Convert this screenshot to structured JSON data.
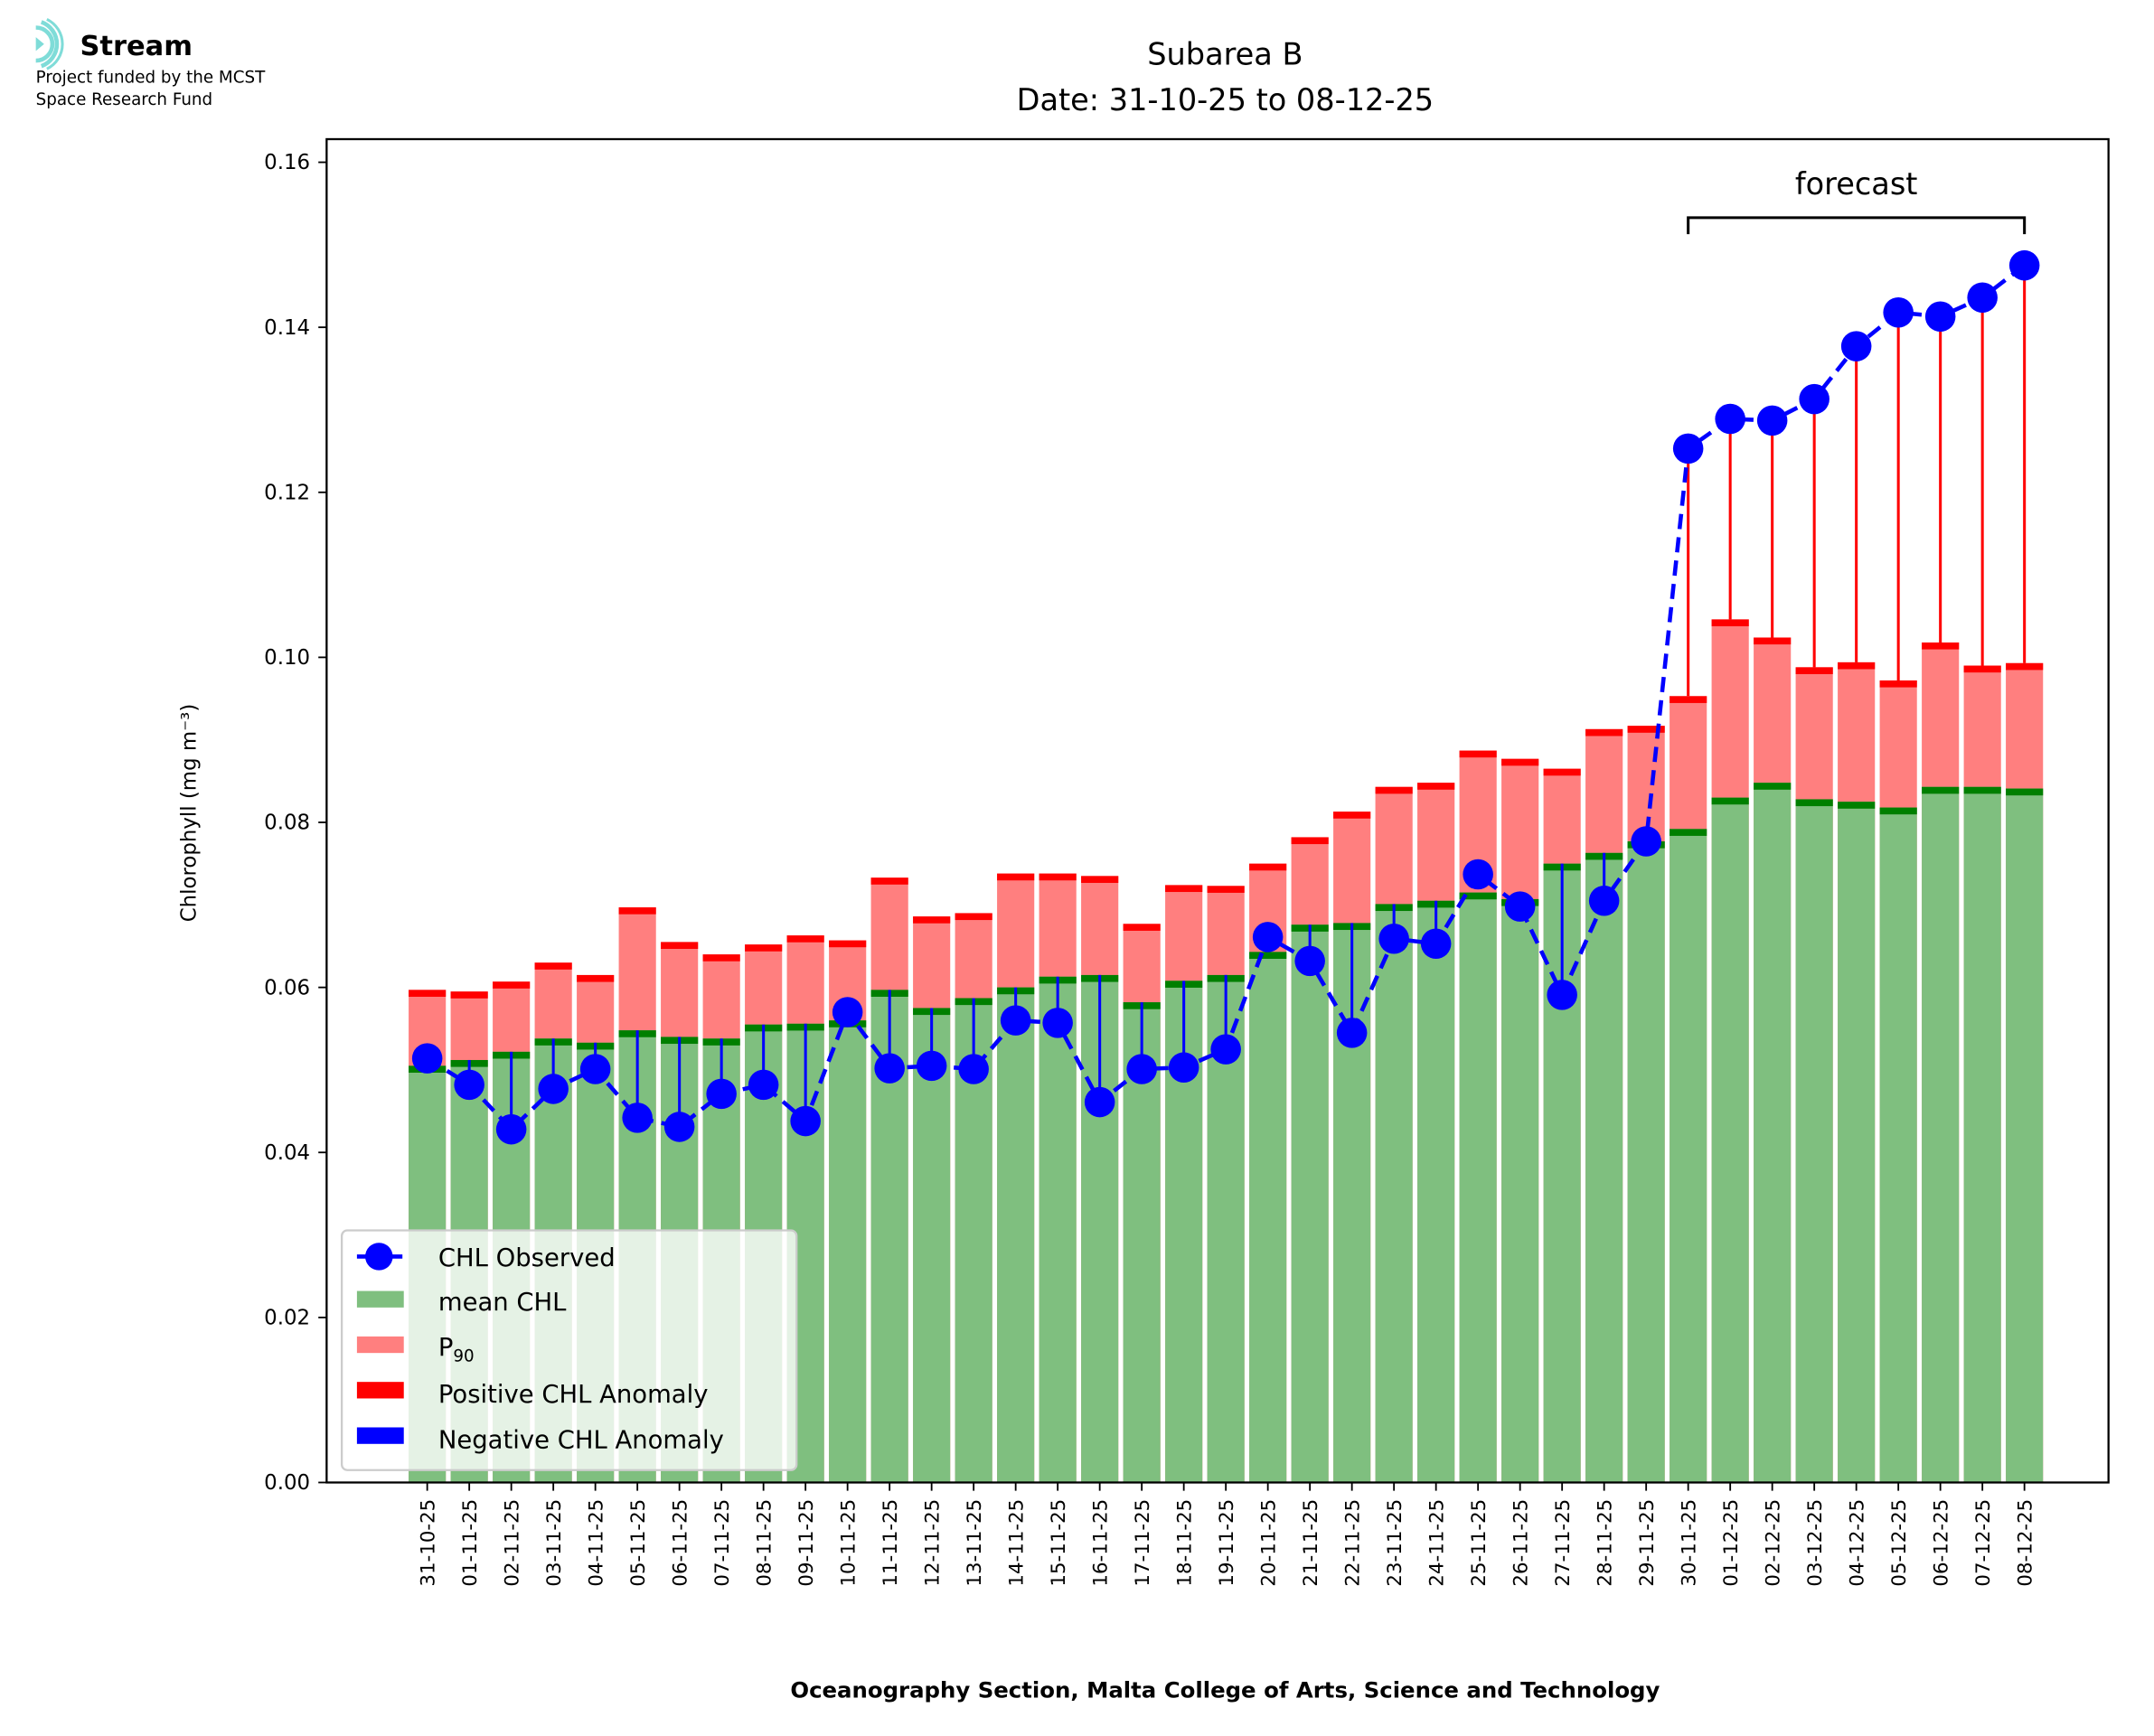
{
  "logo": {
    "name": "Stream",
    "line1": "Project funded by the MCST",
    "line2": "Space Research Fund"
  },
  "chart_data": {
    "type": "bar",
    "title": "Subarea B",
    "subtitle": "Date: 31-10-25 to 08-12-25",
    "xlabel": "Oceanography Section, Malta College of Arts, Science and Technology",
    "ylabel": "Chlorophyll (mg m⁻³)",
    "ylim": [
      0,
      0.1628
    ],
    "yticks": [
      "0.00",
      "0.02",
      "0.04",
      "0.06",
      "0.08",
      "0.10",
      "0.12",
      "0.14",
      "0.16"
    ],
    "ytick_values": [
      0,
      0.02,
      0.04,
      0.06,
      0.08,
      0.1,
      0.12,
      0.14,
      0.16
    ],
    "annotation": "forecast",
    "forecast_start": "30-11-25",
    "forecast_end": "08-12-25",
    "categories": [
      "31-10-25",
      "01-11-25",
      "02-11-25",
      "03-11-25",
      "04-11-25",
      "05-11-25",
      "06-11-25",
      "07-11-25",
      "08-11-25",
      "09-11-25",
      "10-11-25",
      "11-11-25",
      "12-11-25",
      "13-11-25",
      "14-11-25",
      "15-11-25",
      "16-11-25",
      "17-11-25",
      "18-11-25",
      "19-11-25",
      "20-11-25",
      "21-11-25",
      "22-11-25",
      "23-11-25",
      "24-11-25",
      "25-11-25",
      "26-11-25",
      "27-11-25",
      "28-11-25",
      "29-11-25",
      "30-11-25",
      "01-12-25",
      "02-12-25",
      "03-12-25",
      "04-12-25",
      "05-12-25",
      "06-12-25",
      "07-12-25",
      "08-12-25"
    ],
    "series": [
      {
        "name": "mean CHL",
        "color": "#7fbf7f",
        "values": [
          0.0505,
          0.0512,
          0.0522,
          0.0538,
          0.0533,
          0.0548,
          0.054,
          0.0538,
          0.0555,
          0.0556,
          0.056,
          0.0597,
          0.0575,
          0.0587,
          0.06,
          0.0613,
          0.0615,
          0.0582,
          0.0608,
          0.0615,
          0.0643,
          0.0676,
          0.0678,
          0.0701,
          0.0705,
          0.0715,
          0.0707,
          0.075,
          0.0763,
          0.0777,
          0.0792,
          0.083,
          0.0848,
          0.0828,
          0.0825,
          0.0818,
          0.0843,
          0.0843,
          0.0841
        ]
      },
      {
        "name": "P90",
        "color": "#ff7f7f",
        "values": [
          0.0597,
          0.0595,
          0.0607,
          0.063,
          0.0615,
          0.0697,
          0.0655,
          0.064,
          0.0652,
          0.0663,
          0.0657,
          0.0733,
          0.0686,
          0.069,
          0.0738,
          0.0738,
          0.0735,
          0.0677,
          0.0724,
          0.0723,
          0.075,
          0.0782,
          0.0813,
          0.0843,
          0.0848,
          0.0887,
          0.0877,
          0.0865,
          0.0913,
          0.0917,
          0.0953,
          0.1046,
          0.1024,
          0.0988,
          0.0994,
          0.0972,
          0.1018,
          0.099,
          0.0993
        ]
      },
      {
        "name": "CHL Observed",
        "color": "#0000ff",
        "values": [
          0.0514,
          0.0482,
          0.0428,
          0.0477,
          0.0501,
          0.0442,
          0.0431,
          0.0471,
          0.0482,
          0.0438,
          0.057,
          0.0502,
          0.0505,
          0.0501,
          0.056,
          0.0557,
          0.0461,
          0.0501,
          0.0503,
          0.0525,
          0.0661,
          0.0632,
          0.0545,
          0.0659,
          0.0653,
          0.0737,
          0.0698,
          0.0591,
          0.0705,
          0.0777,
          0.1253,
          0.1289,
          0.1287,
          0.1313,
          0.1377,
          0.1418,
          0.1413,
          0.1436,
          0.1475
        ]
      }
    ],
    "legend": {
      "placement": "lower-left",
      "entries": [
        "CHL Observed",
        "mean CHL",
        "P",
        "Positive CHL Anomaly",
        "Negative CHL Anomaly"
      ],
      "p_subscript": "90"
    },
    "colors": {
      "positive": "#ff0000",
      "negative": "#0000ff",
      "mean_edge": "#007f00"
    }
  }
}
